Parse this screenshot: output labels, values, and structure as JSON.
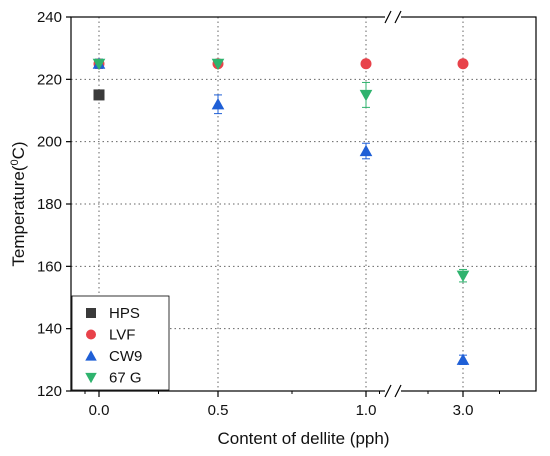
{
  "chart_data": {
    "type": "scatter",
    "xlabel": "Content of dellite (pph)",
    "ylabel_text": "Temperature(",
    "ylabel_sup": "0",
    "ylabel_unit": "C)",
    "ylim": [
      120,
      240
    ],
    "yticks": [
      120,
      140,
      160,
      180,
      200,
      220,
      240
    ],
    "categories": [
      "0.0",
      "0.5",
      "1.0",
      "3.0"
    ],
    "x_axis_break": "between 1.0 and 3.0",
    "grid": "dotted",
    "legend_position": "bottom-left",
    "series": [
      {
        "name": "HPS",
        "marker": "square",
        "color": "#3a3a3a",
        "points": [
          {
            "x": "0.0",
            "y": 215,
            "err": 1.5
          }
        ]
      },
      {
        "name": "LVF",
        "marker": "circle",
        "color": "#e8424a",
        "points": [
          {
            "x": "0.0",
            "y": 225,
            "err": 0.8
          },
          {
            "x": "0.5",
            "y": 225,
            "err": 0.8
          },
          {
            "x": "1.0",
            "y": 225,
            "err": 0.5
          },
          {
            "x": "3.0",
            "y": 225,
            "err": 0.5
          }
        ]
      },
      {
        "name": "CW9",
        "marker": "triangle-up",
        "color": "#1f5fd6",
        "points": [
          {
            "x": "0.0",
            "y": 225,
            "err": 1.5
          },
          {
            "x": "0.5",
            "y": 212,
            "err": 3
          },
          {
            "x": "1.0",
            "y": 197,
            "err": 2.5
          },
          {
            "x": "3.0",
            "y": 130,
            "err": 1.5
          }
        ]
      },
      {
        "name": "67 G",
        "marker": "triangle-down",
        "color": "#2fb36e",
        "points": [
          {
            "x": "0.0",
            "y": 225,
            "err": 1
          },
          {
            "x": "0.5",
            "y": 225,
            "err": 1
          },
          {
            "x": "1.0",
            "y": 215,
            "err": 4
          },
          {
            "x": "3.0",
            "y": 157,
            "err": 2
          }
        ]
      }
    ]
  }
}
